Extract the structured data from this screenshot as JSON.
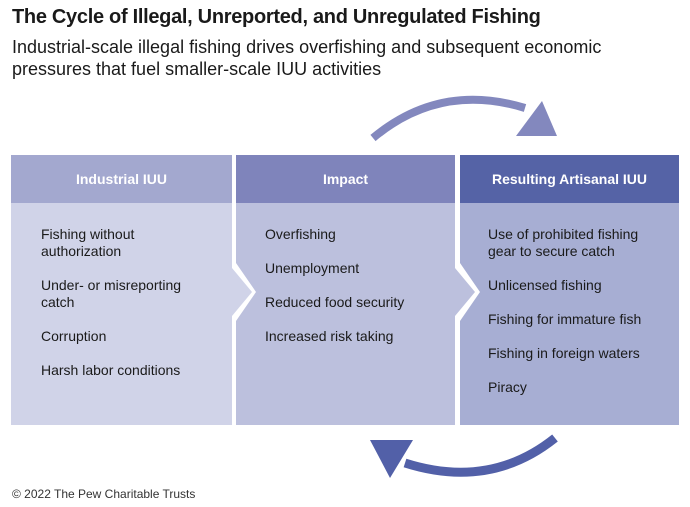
{
  "title": "The Cycle of Illegal, Unreported, and Unregulated Fishing",
  "subtitle": "Industrial-scale illegal fishing drives overfishing and subsequent economic pressures that fuel smaller-scale IUU activities",
  "colors": {
    "col1_header": "#a3a8cf",
    "col1_body": "#d0d3e8",
    "col2_header": "#7f84bb",
    "col2_body": "#bcc0dd",
    "col3_header": "#5563a6",
    "col3_body": "#a7aed3",
    "arrow_top": "#8388be",
    "arrow_bottom": "#5260a8"
  },
  "columns": [
    {
      "header": "Industrial IUU",
      "items": [
        "Fishing without authorization",
        "Under- or misreporting catch",
        "Corruption",
        "Harsh labor conditions"
      ]
    },
    {
      "header": "Impact",
      "items": [
        "Overfishing",
        "Unemployment",
        "Reduced food security",
        "Increased risk taking"
      ]
    },
    {
      "header": "Resulting Artisanal IUU",
      "items": [
        "Use of prohibited fishing gear to secure catch",
        "Unlicensed fishing",
        "Fishing for immature fish",
        "Fishing in foreign waters",
        "Piracy"
      ]
    }
  ],
  "footer": "© 2022 The Pew Charitable Trusts"
}
